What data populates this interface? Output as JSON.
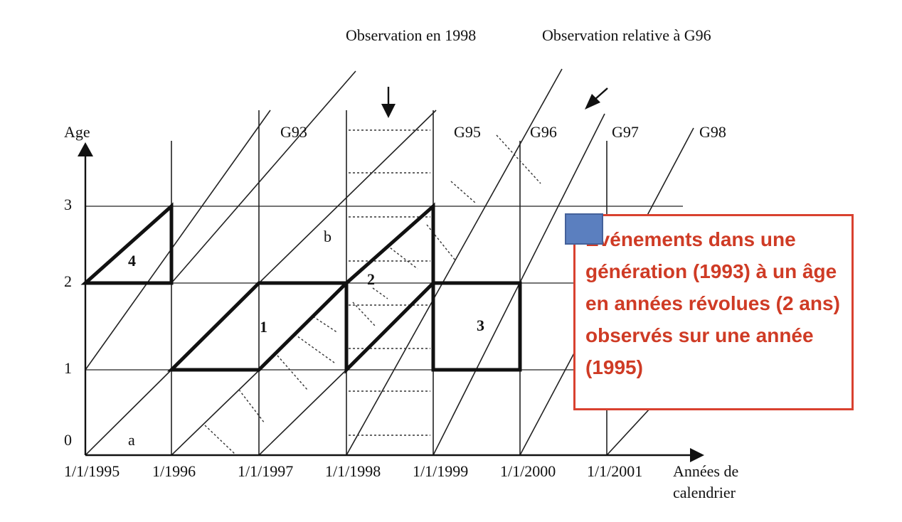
{
  "header": {
    "observation_1998": "Observation en 1998",
    "observation_g96": "Observation relative à G96"
  },
  "axes": {
    "y_title": "Age",
    "x_title_line1": "Années de",
    "x_title_line2": "calendrier",
    "y_ticks": [
      "0",
      "1",
      "2",
      "3"
    ],
    "x_ticks": [
      "1/1/1995",
      "1/1996",
      "1/1/1997",
      "1/1/1998",
      "1/1/1999",
      "1/1/2000",
      "1/1/2001"
    ]
  },
  "generations": [
    "G93",
    "G95",
    "G96",
    "G97",
    "G98"
  ],
  "region_labels": {
    "a": "a",
    "b": "b",
    "r1": "1",
    "r2": "2",
    "r3": "3",
    "r4": "4"
  },
  "callout": {
    "text": "Événements dans une génération (1993) à un âge en années révolues (2 ans) observés sur une année (1995)",
    "text_color": "#cf3b25",
    "border_color": "#d9412f",
    "swatch_color": "#5b7fbf"
  }
}
